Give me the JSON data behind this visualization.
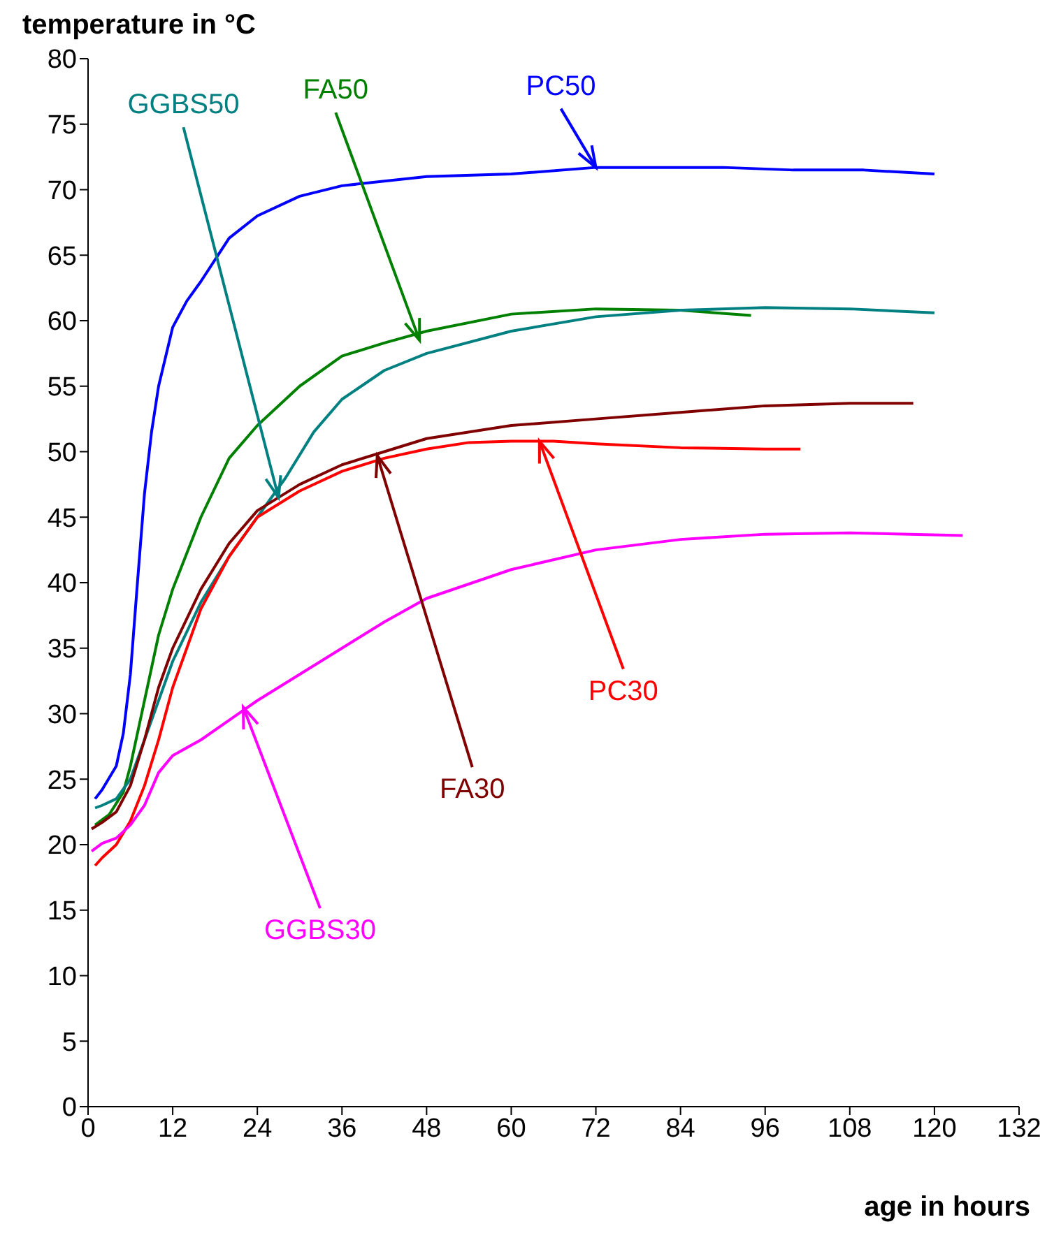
{
  "chart_data": {
    "type": "line",
    "xlabel": "age in hours",
    "ylabel": "temperature in °C",
    "xlim": [
      0,
      132
    ],
    "xticks": [
      0,
      12,
      24,
      36,
      48,
      60,
      72,
      84,
      96,
      108,
      120,
      132
    ],
    "ylim": [
      0,
      80
    ],
    "yticks": [
      0,
      5,
      10,
      15,
      20,
      25,
      30,
      35,
      40,
      45,
      50,
      55,
      60,
      65,
      70,
      75,
      80
    ],
    "grid": false,
    "legend": false,
    "marker": "none",
    "line_style": "solid",
    "series": [
      {
        "color": "#0000ff",
        "x": [
          1,
          2,
          4,
          5,
          6,
          7,
          8,
          9,
          10,
          12,
          14,
          16,
          20,
          24,
          30,
          36,
          48,
          60,
          72,
          84,
          90,
          100,
          110,
          120
        ],
        "values": [
          23.5,
          24.2,
          26,
          28.5,
          33,
          40,
          46.8,
          51.5,
          55,
          59.5,
          61.5,
          63,
          66.3,
          68,
          69.5,
          70.3,
          71,
          71.2,
          71.7,
          71.7,
          71.7,
          71.5,
          71.5,
          71.2
        ]
      },
      {
        "color": "#008000",
        "x": [
          1,
          3,
          5,
          6,
          8,
          10,
          12,
          16,
          20,
          24,
          30,
          36,
          42,
          48,
          60,
          72,
          84,
          94
        ],
        "values": [
          21.5,
          22.3,
          24,
          26,
          31,
          36,
          39.5,
          45,
          49.5,
          52,
          55,
          57.3,
          58.3,
          59.2,
          60.5,
          60.9,
          60.8,
          60.4
        ]
      },
      {
        "color": "#008080",
        "x": [
          1,
          2,
          4,
          6,
          8,
          12,
          16,
          20,
          24,
          28,
          32,
          36,
          42,
          48,
          60,
          72,
          84,
          96,
          108,
          120
        ],
        "values": [
          22.8,
          23,
          23.5,
          25,
          28,
          34,
          38.5,
          42,
          45,
          48,
          51.5,
          54,
          56.2,
          57.5,
          59.2,
          60.3,
          60.8,
          61,
          60.9,
          60.6
        ]
      },
      {
        "color": "#800000",
        "x": [
          0.5,
          2,
          4,
          6,
          8,
          10,
          12,
          16,
          20,
          24,
          30,
          36,
          42,
          48,
          60,
          72,
          84,
          96,
          108,
          117
        ],
        "values": [
          21.2,
          21.7,
          22.5,
          24.5,
          28,
          32,
          35,
          39.5,
          43,
          45.5,
          47.5,
          49,
          50,
          51,
          52,
          52.5,
          53,
          53.5,
          53.7,
          53.7
        ]
      },
      {
        "color": "#ff0000",
        "x": [
          1,
          2,
          4,
          6,
          8,
          10,
          12,
          16,
          20,
          24,
          30,
          36,
          42,
          48,
          54,
          60,
          66,
          72,
          84,
          96,
          101
        ],
        "values": [
          18.4,
          19,
          20,
          21.8,
          24.5,
          28,
          32,
          38,
          42,
          45,
          47,
          48.5,
          49.5,
          50.2,
          50.7,
          50.8,
          50.8,
          50.6,
          50.3,
          50.2,
          50.2
        ]
      },
      {
        "color": "#ff00ff",
        "x": [
          0.5,
          2,
          4,
          6,
          8,
          10,
          12,
          16,
          20,
          24,
          30,
          36,
          42,
          48,
          60,
          72,
          84,
          96,
          108,
          124
        ],
        "values": [
          19.5,
          20.1,
          20.5,
          21.5,
          23,
          25.5,
          26.8,
          28,
          29.5,
          31,
          33,
          35,
          37,
          38.8,
          41,
          42.5,
          43.3,
          43.7,
          43.8,
          43.6
        ]
      }
    ],
    "annotations": [
      {
        "text": "PC50",
        "x": 72,
        "y": 71.7
      },
      {
        "text": "FA50",
        "x": 47,
        "y": 58.5
      },
      {
        "text": "GGBS50",
        "x": 27,
        "y": 46.5
      },
      {
        "text": "FA30",
        "x": 41,
        "y": 49.7
      },
      {
        "text": "PC30",
        "x": 64,
        "y": 50.8
      },
      {
        "text": "GGBS30",
        "x": 22,
        "y": 30.5
      }
    ]
  }
}
